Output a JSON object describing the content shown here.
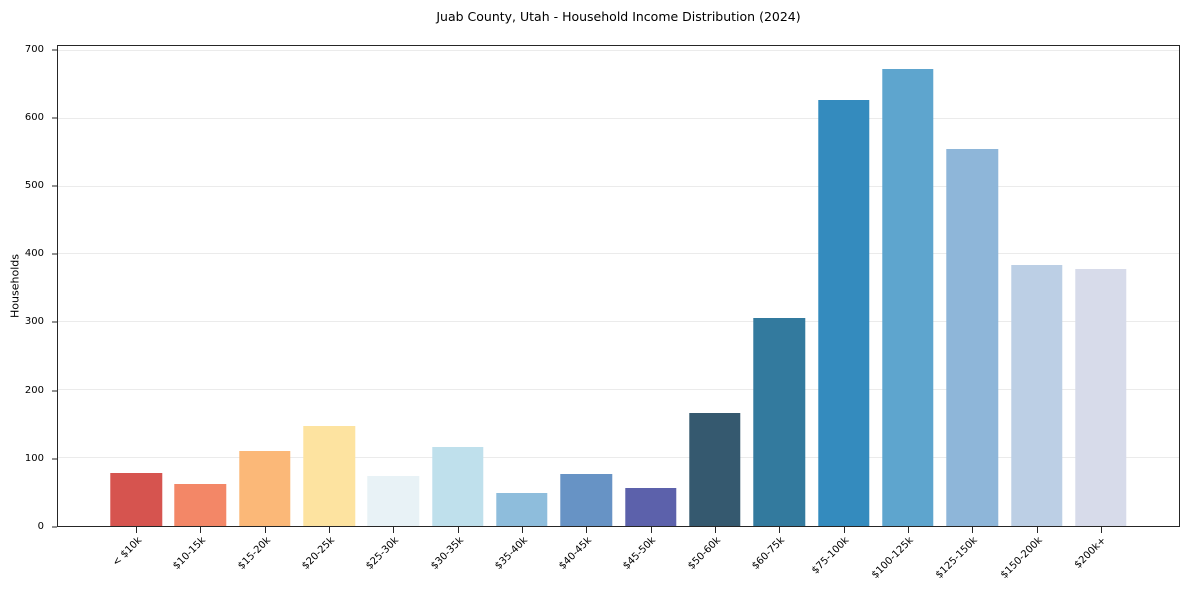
{
  "chart_data": {
    "type": "bar",
    "title": "Juab County, Utah - Household Income Distribution (2024)",
    "xlabel": "",
    "ylabel": "Households",
    "categories": [
      "< $10k",
      "$10-15k",
      "$15-20k",
      "$20-25k",
      "$25-30k",
      "$30-35k",
      "$35-40k",
      "$40-45k",
      "$45-50k",
      "$50-60k",
      "$60-75k",
      "$75-100k",
      "$100-125k",
      "$125-150k",
      "$150-200k",
      "$200k+"
    ],
    "values": [
      78,
      62,
      110,
      147,
      73,
      116,
      48,
      77,
      56,
      166,
      306,
      628,
      673,
      556,
      385,
      378
    ],
    "bar_colors": [
      "#d6544f",
      "#f38767",
      "#fbb878",
      "#fde3a0",
      "#e8f2f6",
      "#bfe0ec",
      "#8ebddc",
      "#6793c5",
      "#5c61ab",
      "#35596f",
      "#337a9e",
      "#348bbe",
      "#5ea5ce",
      "#8eb6d9",
      "#bccfe5",
      "#d7dbea"
    ],
    "yticks": [
      0,
      100,
      200,
      300,
      400,
      500,
      600,
      700
    ],
    "ylim": [
      0,
      707
    ],
    "grid": "horizontal",
    "legend": "none",
    "styles": {
      "background": "#ffffff",
      "spine_color": "#262626",
      "grid_color": "#ebebeb",
      "text_color": "#000000"
    }
  }
}
